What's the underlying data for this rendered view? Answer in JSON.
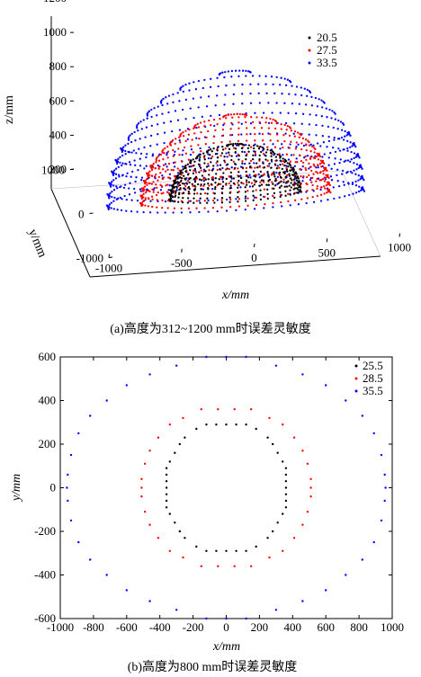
{
  "chart_data": [
    {
      "type": "scatter",
      "view": "3d",
      "caption": "(a)高度为312~1200 mm时误差灵敏度",
      "xlabel": "x/mm",
      "ylabel": "y/mm",
      "zlabel": "z/mm",
      "xlim": [
        -1000,
        1000
      ],
      "ylim": [
        -1000,
        1000
      ],
      "zlim": [
        200,
        1200
      ],
      "xticks": [
        -1000,
        -500,
        0,
        500,
        1000
      ],
      "yticks": [
        -1000,
        0,
        1000
      ],
      "zticks": [
        200,
        400,
        600,
        800,
        1000,
        1200
      ],
      "legend_position": "top-right",
      "series": [
        {
          "name": "20.5",
          "color": "#000000",
          "approx_radius": 450,
          "z_range": [
            250,
            540
          ]
        },
        {
          "name": "27.5",
          "color": "#ff0000",
          "approx_radius": 650,
          "z_range": [
            240,
            710
          ]
        },
        {
          "name": "33.5",
          "color": "#0000ff",
          "approx_radius": 880,
          "z_range": [
            240,
            960
          ]
        }
      ]
    },
    {
      "type": "scatter",
      "caption": "(b)高度为800 mm时误差灵敏度",
      "xlabel": "x/mm",
      "ylabel": "y/mm",
      "xlim": [
        -1000,
        1000
      ],
      "ylim": [
        -600,
        600
      ],
      "xticks": [
        -1000,
        -800,
        -600,
        -400,
        -200,
        0,
        200,
        400,
        600,
        800,
        1000
      ],
      "yticks": [
        -600,
        -400,
        -200,
        0,
        200,
        400,
        600
      ],
      "legend_position": "top-right",
      "series": [
        {
          "name": "25.5",
          "color": "#000000",
          "points": [
            [
              -360,
              0
            ],
            [
              -360,
              30
            ],
            [
              -360,
              -30
            ],
            [
              -360,
              60
            ],
            [
              -360,
              -60
            ],
            [
              -360,
              90
            ],
            [
              -360,
              -90
            ],
            [
              -340,
              120
            ],
            [
              -340,
              -120
            ],
            [
              -310,
              160
            ],
            [
              -310,
              -160
            ],
            [
              -280,
              200
            ],
            [
              -280,
              -200
            ],
            [
              -250,
              230
            ],
            [
              -250,
              -230
            ],
            [
              -180,
              270
            ],
            [
              -180,
              -270
            ],
            [
              -120,
              290
            ],
            [
              -120,
              -290
            ],
            [
              -60,
              290
            ],
            [
              -60,
              -290
            ],
            [
              0,
              290
            ],
            [
              0,
              -290
            ],
            [
              60,
              290
            ],
            [
              60,
              -290
            ],
            [
              120,
              290
            ],
            [
              120,
              -290
            ],
            [
              180,
              270
            ],
            [
              180,
              -270
            ],
            [
              250,
              230
            ],
            [
              250,
              -230
            ],
            [
              280,
              200
            ],
            [
              280,
              -200
            ],
            [
              310,
              160
            ],
            [
              310,
              -160
            ],
            [
              340,
              120
            ],
            [
              340,
              -120
            ],
            [
              360,
              90
            ],
            [
              360,
              -90
            ],
            [
              360,
              60
            ],
            [
              360,
              -60
            ],
            [
              360,
              30
            ],
            [
              360,
              -30
            ],
            [
              360,
              0
            ]
          ]
        },
        {
          "name": "28.5",
          "color": "#ff0000",
          "points": [
            [
              -510,
              0
            ],
            [
              -510,
              40
            ],
            [
              -510,
              -40
            ],
            [
              -490,
              110
            ],
            [
              -490,
              -110
            ],
            [
              -460,
              170
            ],
            [
              -460,
              -170
            ],
            [
              -410,
              230
            ],
            [
              -410,
              -230
            ],
            [
              -340,
              290
            ],
            [
              -340,
              -290
            ],
            [
              -260,
              320
            ],
            [
              -260,
              -320
            ],
            [
              -150,
              360
            ],
            [
              -150,
              -360
            ],
            [
              -50,
              360
            ],
            [
              -50,
              -360
            ],
            [
              50,
              360
            ],
            [
              50,
              -360
            ],
            [
              150,
              360
            ],
            [
              150,
              -360
            ],
            [
              260,
              320
            ],
            [
              260,
              -320
            ],
            [
              340,
              290
            ],
            [
              340,
              -290
            ],
            [
              410,
              230
            ],
            [
              410,
              -230
            ],
            [
              460,
              170
            ],
            [
              460,
              -170
            ],
            [
              490,
              110
            ],
            [
              490,
              -110
            ],
            [
              510,
              40
            ],
            [
              510,
              -40
            ],
            [
              510,
              0
            ]
          ]
        },
        {
          "name": "35.5",
          "color": "#0000ff",
          "points": [
            [
              -960,
              0
            ],
            [
              -955,
              60
            ],
            [
              -955,
              -60
            ],
            [
              -935,
              150
            ],
            [
              -935,
              -150
            ],
            [
              -890,
              250
            ],
            [
              -890,
              -250
            ],
            [
              -820,
              330
            ],
            [
              -820,
              -330
            ],
            [
              -720,
              400
            ],
            [
              -720,
              -400
            ],
            [
              -600,
              470
            ],
            [
              -600,
              -470
            ],
            [
              -460,
              520
            ],
            [
              -460,
              -520
            ],
            [
              -300,
              560
            ],
            [
              -300,
              -560
            ],
            [
              -120,
              600
            ],
            [
              -120,
              -600
            ],
            [
              0,
              600
            ],
            [
              0,
              -600
            ],
            [
              120,
              600
            ],
            [
              120,
              -600
            ],
            [
              300,
              560
            ],
            [
              300,
              -560
            ],
            [
              460,
              520
            ],
            [
              460,
              -520
            ],
            [
              600,
              470
            ],
            [
              600,
              -470
            ],
            [
              720,
              400
            ],
            [
              720,
              -400
            ],
            [
              820,
              330
            ],
            [
              820,
              -330
            ],
            [
              890,
              250
            ],
            [
              890,
              -250
            ],
            [
              935,
              150
            ],
            [
              935,
              -150
            ],
            [
              955,
              60
            ],
            [
              955,
              -60
            ],
            [
              960,
              0
            ]
          ]
        }
      ]
    }
  ]
}
